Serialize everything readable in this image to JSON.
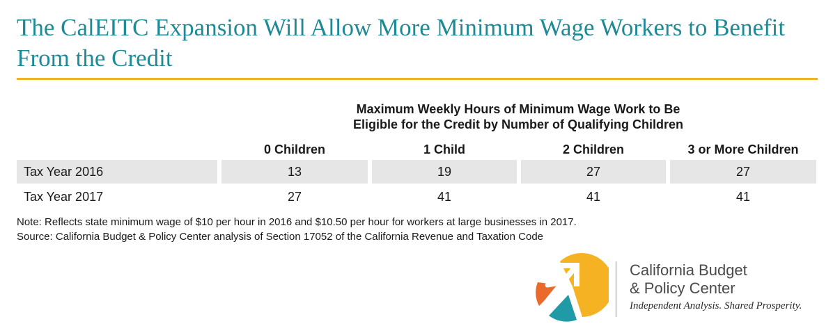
{
  "title": "The CalEITC Expansion Will Allow More Minimum Wage Workers to Benefit From the Credit",
  "chart_data": {
    "type": "table",
    "group_header_line1": "Maximum Weekly Hours of Minimum Wage Work to Be",
    "group_header_line2": "Eligible for the Credit by Number of Qualifying Children",
    "columns": [
      "0 Children",
      "1 Child",
      "2 Children",
      "3 or More Children"
    ],
    "rows": [
      {
        "label": "Tax Year 2016",
        "values": [
          13,
          19,
          27,
          27
        ]
      },
      {
        "label": "Tax Year 2017",
        "values": [
          27,
          41,
          41,
          41
        ]
      }
    ]
  },
  "note": "Note: Reflects state minimum wage of $10 per hour in 2016 and $10.50 per hour for workers at large businesses in 2017.",
  "source": "Source: California Budget & Policy Center analysis of Section 17052 of the California Revenue and Taxation Code",
  "logo": {
    "org_line1": "California Budget",
    "org_line2": "& Policy Center",
    "tagline": "Independent Analysis. Shared Prosperity.",
    "colors": {
      "yellow": "#f5b324",
      "orange": "#ea6a2b",
      "teal": "#1f9aa6"
    }
  }
}
